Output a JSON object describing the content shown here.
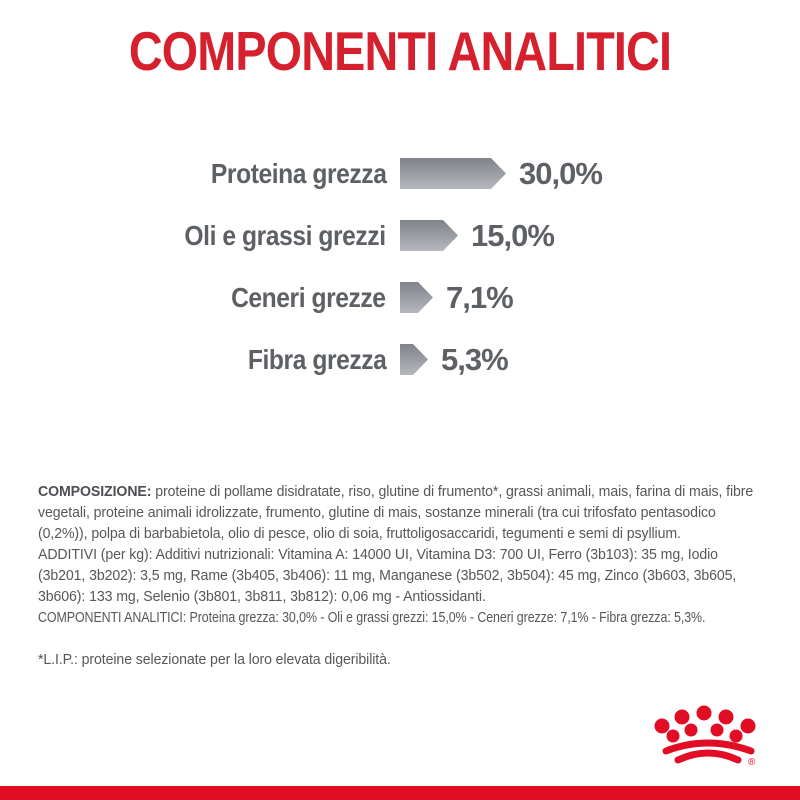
{
  "header": {
    "title": "COMPONENTI ANALITICI"
  },
  "colors": {
    "title_red": "#d7202e",
    "brand_red": "#e00d25",
    "label_gray": "#5d6064",
    "body_gray": "#55575a",
    "bar_gradient_top": "#7f838a",
    "bar_gradient_bottom": "#b5b8bc"
  },
  "chart_data": {
    "type": "bar",
    "orientation": "horizontal",
    "title": "COMPONENTI ANALITICI",
    "unit": "%",
    "categories": [
      "Proteina grezza",
      "Oli e grassi grezzi",
      "Ceneri grezze",
      "Fibra grezza"
    ],
    "values": [
      30.0,
      15.0,
      7.1,
      5.3
    ],
    "rows": [
      {
        "label": "Proteina grezza",
        "value": 30.0,
        "value_label": "30,0%"
      },
      {
        "label": "Oli e grassi grezzi",
        "value": 15.0,
        "value_label": "15,0%"
      },
      {
        "label": "Ceneri grezze",
        "value": 7.1,
        "value_label": "7,1%"
      },
      {
        "label": "Fibra grezza",
        "value": 5.3,
        "value_label": "5,3%"
      }
    ],
    "xlim": [
      0,
      33
    ],
    "bar_style": "gray gradient right-pointing arrow",
    "legend": "none",
    "grid": "off"
  },
  "body": {
    "composizione_label": "COMPOSIZIONE:",
    "composizione_text": "proteine di pollame disidratate, riso, glutine di frumento*, grassi animali, mais, farina di mais, fibre vegetali, proteine animali idrolizzate, frumento, glutine di mais, sostanze minerali (tra cui trifosfato pentasodico (0,2%)), polpa di barbabietola, olio di pesce, olio di soia, fruttoligosaccaridi, tegumenti e semi di psyllium.",
    "additivi_text": "ADDITIVI (per kg): Additivi nutrizionali: Vitamina A: 14000 UI, Vitamina D3: 700 UI, Ferro (3b103): 35 mg, Iodio (3b201, 3b202): 3,5 mg, Rame (3b405, 3b406): 11 mg, Manganese (3b502, 3b504): 45 mg, Zinco (3b603, 3b605, 3b606): 133 mg, Selenio (3b801, 3b811, 3b812): 0,06 mg - Antiossidanti.",
    "analitici_text": "COMPONENTI ANALITICI: Proteina grezza: 30,0% - Oli e grassi grezzi: 15,0% - Ceneri grezze: 7,1% - Fibra grezza: 5,3%.",
    "footnote": "*L.I.P.: proteine selezionate per la loro elevata digeribilità."
  },
  "footer": {
    "logo_name": "royal-canin-crown",
    "registered_mark": "®"
  }
}
